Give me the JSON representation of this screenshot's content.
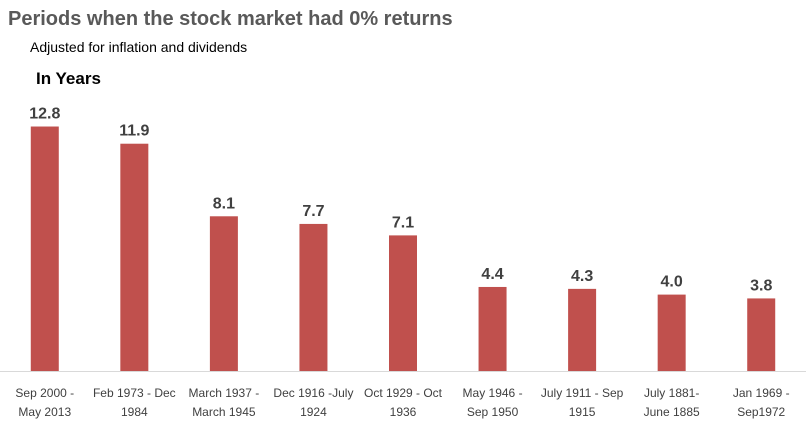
{
  "chart_data": {
    "type": "bar",
    "title": "Periods when the stock market had 0% returns",
    "subtitle": "Adjusted for inflation and dividends",
    "unit_label": "In Years",
    "categories": [
      [
        "Sep 2000 -",
        "May 2013"
      ],
      [
        "Feb 1973 - Dec",
        "1984"
      ],
      [
        "March 1937 -",
        "March 1945"
      ],
      [
        "Dec 1916 -July",
        "1924"
      ],
      [
        "Oct 1929 - Oct",
        "1936"
      ],
      [
        "May 1946 -",
        "Sep 1950"
      ],
      [
        "July 1911 - Sep",
        "1915"
      ],
      [
        "July 1881-",
        "June 1885"
      ],
      [
        "Jan 1969 -",
        "Sep1972"
      ]
    ],
    "values": [
      12.8,
      11.9,
      8.1,
      7.7,
      7.1,
      4.4,
      4.3,
      4.0,
      3.8
    ],
    "value_labels": [
      "12.8",
      "11.9",
      "8.1",
      "7.7",
      "7.1",
      "4.4",
      "4.3",
      "4.0",
      "3.8"
    ],
    "ylim": [
      0,
      14
    ],
    "grid": false,
    "legend": "none",
    "colors": {
      "bar": "#c0504d",
      "axis": "#d9d9d9",
      "title": "#595959",
      "label": "#404040"
    }
  }
}
